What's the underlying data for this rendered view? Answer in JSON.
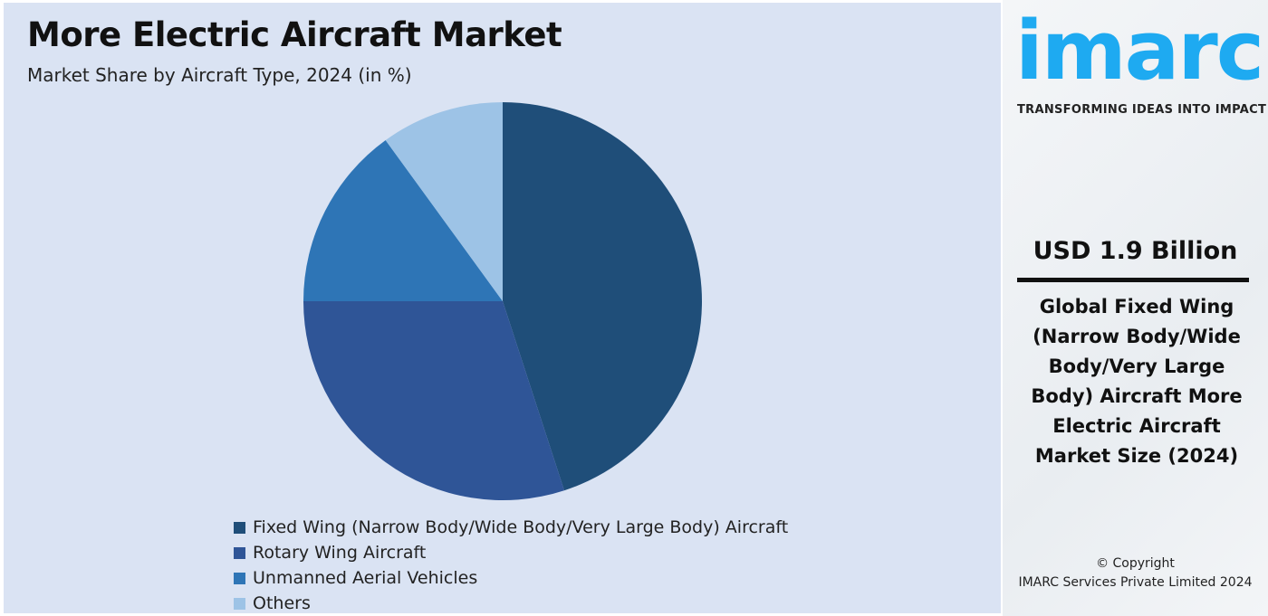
{
  "chart_data": {
    "type": "pie",
    "title": "More Electric Aircraft Market",
    "subtitle": "Market Share by Aircraft Type, 2024 (in %)",
    "categories": [
      "Fixed Wing (Narrow Body/Wide Body/Very Large Body) Aircraft",
      "Rotary Wing Aircraft",
      "Unmanned Aerial Vehicles",
      "Others"
    ],
    "values": [
      45,
      30,
      15,
      10
    ],
    "colors": [
      "#1f4e79",
      "#2f5597",
      "#2e75b6",
      "#9dc3e6"
    ],
    "start_angle": "12 o'clock",
    "direction": "clockwise",
    "legend_position": "bottom"
  },
  "sidebar": {
    "logo": "imarc",
    "tagline": "TRANSFORMING IDEAS INTO IMPACT",
    "value": "USD 1.9 Billion",
    "description": "Global Fixed Wing (Narrow Body/Wide Body/Very Large Body) Aircraft More Electric Aircraft Market Size (2024)",
    "copyright_line1": "© Copyright",
    "copyright_line2": "IMARC Services Private Limited 2024",
    "brand_color": "#1eaaf1"
  }
}
